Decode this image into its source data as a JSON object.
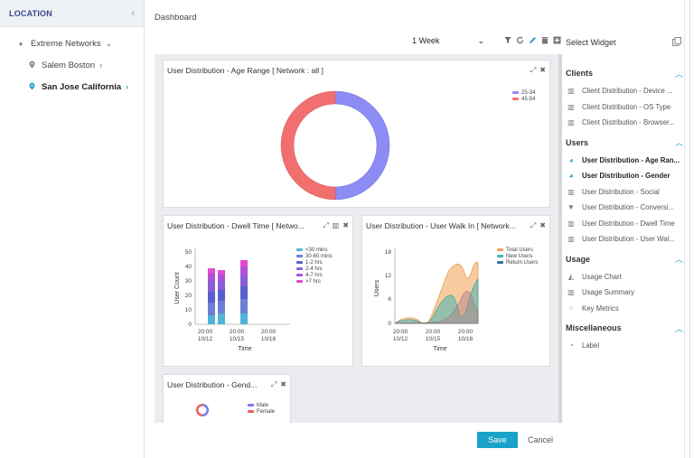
{
  "sidebar": {
    "title": "LOCATION",
    "collapse_icon": "‹",
    "items": [
      {
        "label": "Extreme Networks",
        "icon": "globe-icon",
        "chev": "⌄"
      },
      {
        "label": "Salem Boston",
        "icon": "pin-icon",
        "chev": "›"
      },
      {
        "label": "San Jose California",
        "icon": "pin-icon",
        "chev": "›"
      }
    ]
  },
  "header": {
    "title": "Dashboard",
    "period": "1 Week",
    "period_caret": "⌄",
    "select_widget": "Select Widget"
  },
  "widgets": {
    "age": {
      "title": "User Distribution - Age Range [ Network : all ]",
      "legend": [
        {
          "label": "25-34",
          "color": "#8c8cf4"
        },
        {
          "label": "45-54",
          "color": "#f26f6f"
        }
      ]
    },
    "dwell": {
      "title": "User Distribution - Dwell Time [ Netwo...",
      "ylabel": "User Count",
      "xlabel": "Time",
      "yticks": [
        "50",
        "40",
        "30",
        "20",
        "10",
        "0"
      ],
      "xticks": [
        [
          "20:00",
          "10/12"
        ],
        [
          "20:00",
          "10/15"
        ],
        [
          "20:00",
          "10/18"
        ]
      ],
      "legend": [
        {
          "label": "<30 mins",
          "color": "#4fb3d8"
        },
        {
          "label": "30-60 mins",
          "color": "#6b7fd6"
        },
        {
          "label": "1-2 hrs",
          "color": "#5a5fd0"
        },
        {
          "label": "2-4 hrs",
          "color": "#8a5fd6"
        },
        {
          "label": "4-7 hrs",
          "color": "#b052d8"
        },
        {
          "label": ">7 hrs",
          "color": "#e04bd0"
        }
      ]
    },
    "walkin": {
      "title": "User Distribution - User Walk In [ Network...",
      "ylabel": "Users",
      "xlabel": "Time",
      "yticks": [
        "18",
        "12",
        "6",
        "0"
      ],
      "xticks": [
        [
          "20:00",
          "10/12"
        ],
        [
          "20:00",
          "10/15"
        ],
        [
          "20:00",
          "10/18"
        ]
      ],
      "legend": [
        {
          "label": "Total Users",
          "color": "#f0a050"
        },
        {
          "label": "New Users",
          "color": "#46b6b0"
        },
        {
          "label": "Return Users",
          "color": "#3a6ea8"
        }
      ]
    },
    "gender": {
      "title": "User Distribution - Gend...",
      "legend": [
        {
          "label": "Male",
          "color": "#7a7ae8"
        },
        {
          "label": "Female",
          "color": "#ea6060"
        }
      ]
    }
  },
  "palette": {
    "sections": [
      {
        "name": "Clients",
        "items": [
          {
            "label": "Client Distribution - Device ...",
            "icon": "bar-chart-icon",
            "bold": false
          },
          {
            "label": "Client Distribution - OS Type",
            "icon": "bar-chart-icon",
            "bold": false
          },
          {
            "label": "Client Distribution - Browser...",
            "icon": "bar-chart-icon",
            "bold": false
          }
        ]
      },
      {
        "name": "Users",
        "items": [
          {
            "label": "User Distribution - Age Ran...",
            "icon": "pie-chart-icon",
            "bold": true
          },
          {
            "label": "User Distribution - Gender",
            "icon": "pie-chart-icon",
            "bold": true
          },
          {
            "label": "User Distribution - Social",
            "icon": "bar-chart-icon",
            "bold": false
          },
          {
            "label": "User Distribution - Conversi...",
            "icon": "funnel-icon",
            "bold": false
          },
          {
            "label": "User Distribution - Dwell Time",
            "icon": "bar-chart-icon",
            "bold": false
          },
          {
            "label": "User Distribution - User Wal...",
            "icon": "bar-chart-icon",
            "bold": false
          }
        ]
      },
      {
        "name": "Usage",
        "items": [
          {
            "label": "Usage Chart",
            "icon": "area-chart-icon",
            "bold": false
          },
          {
            "label": "Usage Summary",
            "icon": "bar-chart-icon",
            "bold": false
          },
          {
            "label": "Key Metrics",
            "icon": "metrics-icon",
            "bold": false
          }
        ]
      },
      {
        "name": "Miscellaneous",
        "items": [
          {
            "label": "Label",
            "icon": "label-icon",
            "bold": false
          }
        ]
      }
    ]
  },
  "footer": {
    "save": "Save",
    "cancel": "Cancel"
  }
}
